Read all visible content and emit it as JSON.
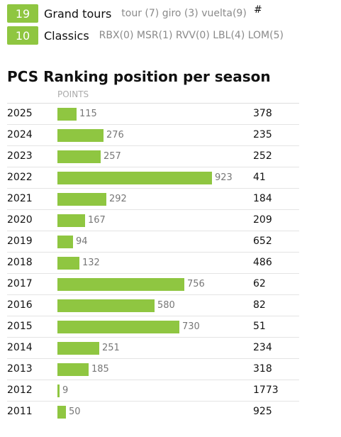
{
  "stats": [
    {
      "count": "19",
      "label": "Grand tours",
      "detail": "tour (7) giro (3) vuelta(9)"
    },
    {
      "count": "10",
      "label": "Classics",
      "detail": "RBX(0) MSR(1) RVV(0) LBL(4) LOM(5)"
    }
  ],
  "ranking": {
    "title": "PCS Ranking position per season",
    "points_header": "POINTS",
    "rank_header": "#",
    "bar_color": "#8fc641",
    "max_points": 923,
    "rows": [
      {
        "year": "2025",
        "points": 115,
        "rank": "378"
      },
      {
        "year": "2024",
        "points": 276,
        "rank": "235"
      },
      {
        "year": "2023",
        "points": 257,
        "rank": "252"
      },
      {
        "year": "2022",
        "points": 923,
        "rank": "41"
      },
      {
        "year": "2021",
        "points": 292,
        "rank": "184"
      },
      {
        "year": "2020",
        "points": 167,
        "rank": "209"
      },
      {
        "year": "2019",
        "points": 94,
        "rank": "652"
      },
      {
        "year": "2018",
        "points": 132,
        "rank": "486"
      },
      {
        "year": "2017",
        "points": 756,
        "rank": "62"
      },
      {
        "year": "2016",
        "points": 580,
        "rank": "82"
      },
      {
        "year": "2015",
        "points": 730,
        "rank": "51"
      },
      {
        "year": "2014",
        "points": 251,
        "rank": "234"
      },
      {
        "year": "2013",
        "points": 185,
        "rank": "318"
      },
      {
        "year": "2012",
        "points": 9,
        "rank": "1773"
      },
      {
        "year": "2011",
        "points": 50,
        "rank": "925"
      }
    ]
  }
}
